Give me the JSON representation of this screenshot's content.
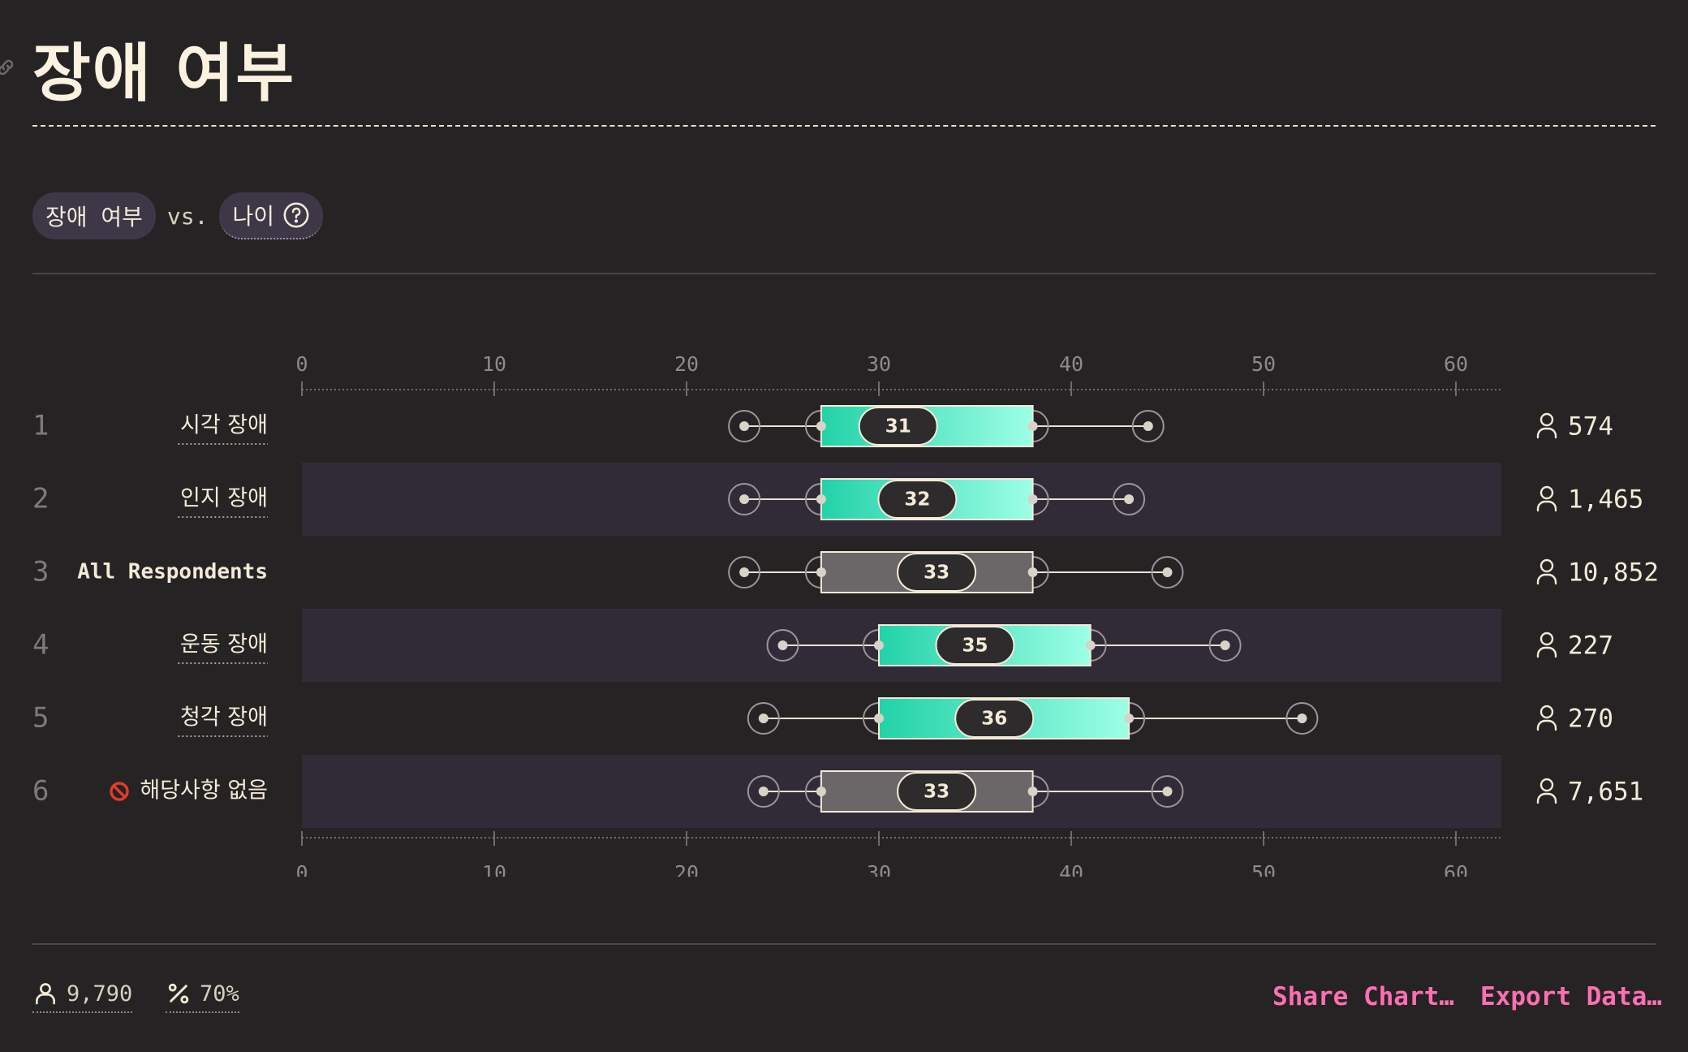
{
  "header": {
    "title": "장애 여부"
  },
  "filters": {
    "primary": "장애 여부",
    "vs": "vs.",
    "secondary": "나이"
  },
  "colors": {
    "background": "#262324",
    "accent_start": "#22d2a8",
    "accent_end": "#9dffe6",
    "neutral_box": "#6b6769",
    "row_band": "#312b38",
    "link": "#ff6fb2"
  },
  "chart_data": {
    "type": "box",
    "x_axis": {
      "min": 0,
      "max": 60,
      "ticks": [
        0,
        10,
        20,
        30,
        40,
        50,
        60
      ]
    },
    "rows": [
      {
        "rank": "1",
        "label": "시각 장애",
        "q1": 27,
        "median": 31,
        "q3": 38,
        "p10": 23,
        "p90": 44,
        "count": "574",
        "highlight": true
      },
      {
        "rank": "2",
        "label": "인지 장애",
        "q1": 27,
        "median": 32,
        "q3": 38,
        "p10": 23,
        "p90": 43,
        "count": "1,465",
        "highlight": true
      },
      {
        "rank": "3",
        "label": "All Respondents",
        "q1": 27,
        "median": 33,
        "q3": 38,
        "p10": 23,
        "p90": 45,
        "count": "10,852",
        "highlight": false
      },
      {
        "rank": "4",
        "label": "운동 장애",
        "q1": 30,
        "median": 35,
        "q3": 41,
        "p10": 25,
        "p90": 48,
        "count": "227",
        "highlight": true
      },
      {
        "rank": "5",
        "label": "청각 장애",
        "q1": 30,
        "median": 36,
        "q3": 43,
        "p10": 24,
        "p90": 52,
        "count": "270",
        "highlight": true
      },
      {
        "rank": "6",
        "label": "해당사항 없음",
        "q1": 27,
        "median": 33,
        "q3": 38,
        "p10": 24,
        "p90": 45,
        "count": "7,651",
        "highlight": false,
        "icon": "no-entry-icon"
      }
    ]
  },
  "footer": {
    "respondents": "9,790",
    "percent": "70%",
    "share_label": "Share Chart…",
    "export_label": "Export Data…"
  }
}
